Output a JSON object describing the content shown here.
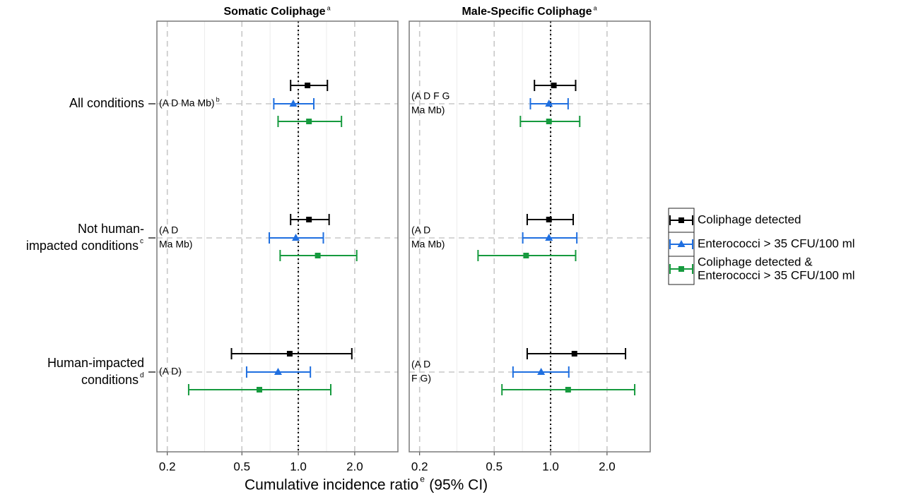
{
  "chart_data": {
    "type": "forest",
    "x_label": "Cumulative incidence ratio",
    "x_label_sup": "e",
    "x_label_tail": "(95% CI)",
    "log_x": true,
    "xlim": [
      0.176,
      3.4
    ],
    "xticks": [
      0.2,
      0.5,
      {
        "value": 1,
        "label": "1.0"
      },
      {
        "value": 2,
        "label": "2.0"
      }
    ],
    "ref_line": 1,
    "grid": true,
    "legend": "right",
    "categories": [
      {
        "lines": [
          "All conditions"
        ]
      },
      {
        "lines": [
          "Not human-",
          "impacted conditions"
        ],
        "sup": "c"
      },
      {
        "lines": [
          "Human-impacted",
          "conditions"
        ],
        "sup": "d"
      }
    ],
    "series": [
      {
        "name": [
          "Coliphage detected"
        ],
        "color": "#000000",
        "marker": "square"
      },
      {
        "name": [
          "Enterococci > 35 CFU/100 ml"
        ],
        "color": "#1f6fe0",
        "marker": "triangle"
      },
      {
        "name": [
          "Coliphage detected &",
          "Enterococci > 35 CFU/100 ml"
        ],
        "color": "#169a3e",
        "marker": "square"
      }
    ],
    "panels": [
      {
        "title": "Somatic Coliphage",
        "title_sup": "a",
        "annotations": [
          {
            "lines": [
              "(A D Ma Mb)"
            ],
            "sup": "b"
          },
          {
            "lines": [
              "(A D",
              "Ma Mb)"
            ]
          },
          {
            "lines": [
              "(A D)"
            ]
          }
        ],
        "estimates": [
          {
            "values": [
              1.12,
              1.14,
              0.9
            ],
            "lower": [
              0.91,
              0.91,
              0.44
            ],
            "upper": [
              1.43,
              1.46,
              1.93
            ]
          },
          {
            "values": [
              0.94,
              0.97,
              0.78
            ],
            "lower": [
              0.74,
              0.7,
              0.53
            ],
            "upper": [
              1.21,
              1.36,
              1.16
            ]
          },
          {
            "values": [
              1.14,
              1.27,
              0.62
            ],
            "lower": [
              0.78,
              0.8,
              0.26
            ],
            "upper": [
              1.7,
              2.05,
              1.49
            ]
          }
        ]
      },
      {
        "title": "Male-Specific Coliphage",
        "title_sup": "a",
        "annotations": [
          {
            "lines": [
              "(A D F G",
              "Ma Mb)"
            ]
          },
          {
            "lines": [
              "(A D",
              "Ma Mb)"
            ]
          },
          {
            "lines": [
              "(A D",
              "F G)"
            ]
          }
        ],
        "estimates": [
          {
            "values": [
              1.04,
              0.98,
              1.34
            ],
            "lower": [
              0.82,
              0.75,
              0.75
            ],
            "upper": [
              1.36,
              1.32,
              2.51
            ]
          },
          {
            "values": [
              0.98,
              0.98,
              0.89
            ],
            "lower": [
              0.78,
              0.71,
              0.63
            ],
            "upper": [
              1.24,
              1.38,
              1.25
            ]
          },
          {
            "values": [
              0.98,
              0.74,
              1.24
            ],
            "lower": [
              0.69,
              0.41,
              0.55
            ],
            "upper": [
              1.43,
              1.36,
              2.81
            ]
          }
        ]
      }
    ]
  }
}
